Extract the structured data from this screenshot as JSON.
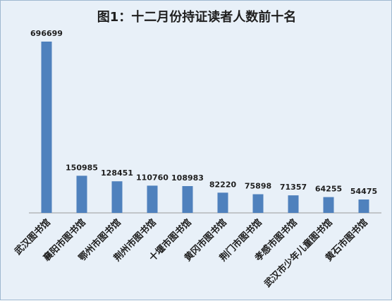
{
  "chart_data": {
    "type": "bar",
    "title": "图1：十二月份持证读者人数前十名",
    "categories": [
      "武汉图书馆",
      "襄阳市图书馆",
      "鄂州市图书馆",
      "荆州市图书馆",
      "十堰市图书馆",
      "黄冈市图书馆",
      "荆门市图书馆",
      "孝感市图书馆",
      "武汉市少年儿童图书馆",
      "黄石市图书馆"
    ],
    "values": [
      696699,
      150985,
      128451,
      110760,
      108983,
      82220,
      75898,
      71357,
      64255,
      54475
    ],
    "ylim": [
      0,
      700000
    ],
    "grid": false,
    "legend": "none",
    "bar_color": "#4f81bd",
    "background_color": "#e8f0f8"
  }
}
